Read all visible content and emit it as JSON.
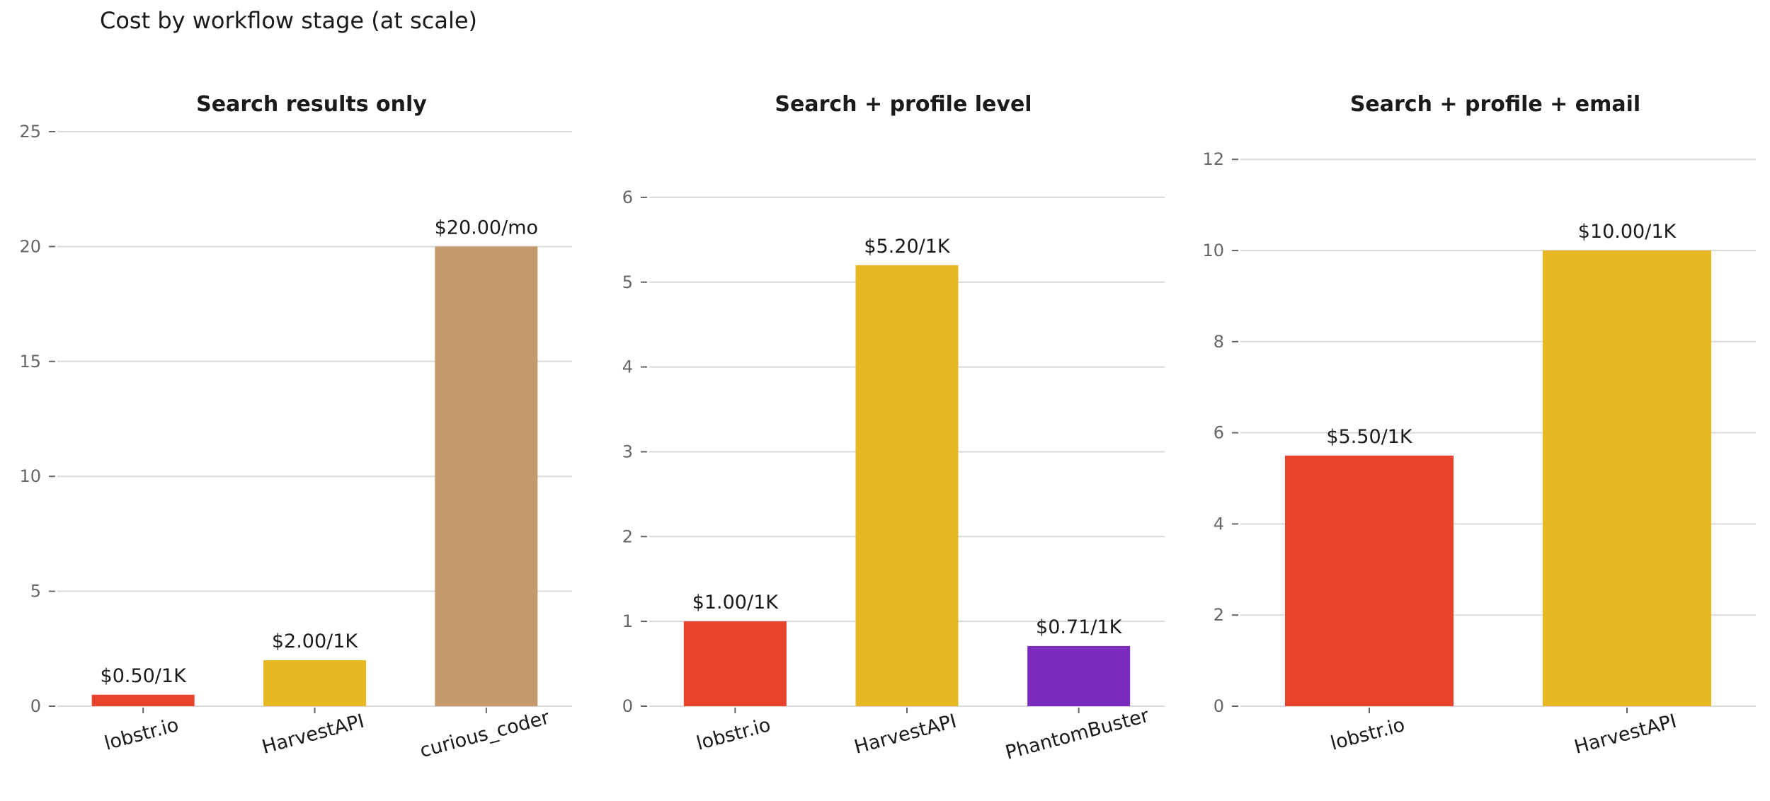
{
  "figure": {
    "title": "Cost by workflow stage (at scale)"
  },
  "chart_data": [
    {
      "type": "bar",
      "title": "Search results only",
      "xlabel": "",
      "ylabel": "",
      "ylim": [
        0,
        25
      ],
      "yticks": [
        0,
        5,
        10,
        15,
        20,
        25
      ],
      "grid": true,
      "categories": [
        "lobstr.io",
        "HarvestAPI",
        "curious_coder"
      ],
      "values": [
        0.5,
        2.0,
        20.0
      ],
      "data_labels": [
        "$0.50/1K",
        "$2.00/1K",
        "$20.00/mo"
      ],
      "colors": [
        "#e8412c",
        "#e6b823",
        "#c49a6c"
      ]
    },
    {
      "type": "bar",
      "title": "Search + profile level",
      "xlabel": "",
      "ylabel": "",
      "ylim": [
        0,
        6.5
      ],
      "yticks": [
        0,
        1,
        2,
        3,
        4,
        5,
        6
      ],
      "grid": true,
      "categories": [
        "lobstr.io",
        "HarvestAPI",
        "PhantomBuster"
      ],
      "values": [
        1.0,
        5.2,
        0.71
      ],
      "data_labels": [
        "$1.00/1K",
        "$5.20/1K",
        "$0.71/1K"
      ],
      "colors": [
        "#e8412c",
        "#e6b823",
        "#7b2cbf"
      ]
    },
    {
      "type": "bar",
      "title": "Search + profile + email",
      "xlabel": "",
      "ylabel": "",
      "ylim": [
        0,
        12.5
      ],
      "yticks": [
        0,
        2,
        4,
        6,
        8,
        10,
        12
      ],
      "grid": true,
      "categories": [
        "lobstr.io",
        "HarvestAPI"
      ],
      "values": [
        5.5,
        10.0
      ],
      "data_labels": [
        "$5.50/1K",
        "$10.00/1K"
      ],
      "colors": [
        "#e8412c",
        "#e6b823"
      ]
    }
  ]
}
